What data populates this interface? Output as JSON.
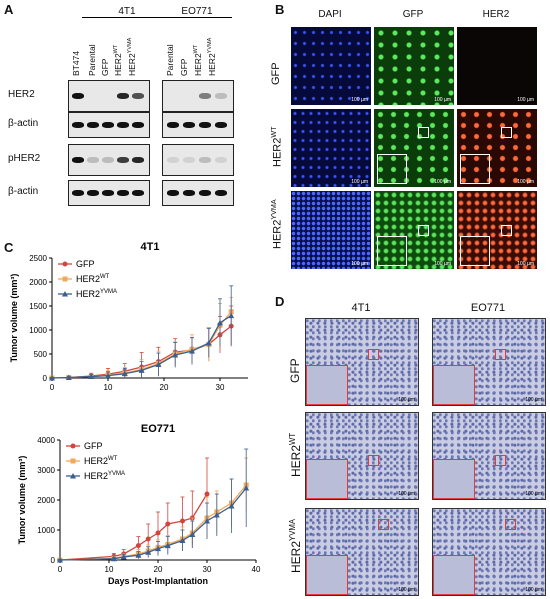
{
  "panel_a": {
    "label": "A",
    "groups": [
      "4T1",
      "EO771"
    ],
    "lanes_4t1": [
      "BT474",
      "Parental",
      "GFP",
      "HER2WT",
      "HER2YVMA"
    ],
    "lanes_eo771": [
      "Parental",
      "GFP",
      "HER2WT",
      "HER2YVMA"
    ],
    "rows": [
      "HER2",
      "β-actin",
      "pHER2",
      "β-actin"
    ]
  },
  "panel_b": {
    "label": "B",
    "columns": [
      "DAPI",
      "GFP",
      "HER2"
    ],
    "rows": [
      "GFP",
      "HER2WT",
      "HER2YVMA"
    ],
    "scale": "100 µm"
  },
  "panel_c": {
    "label": "C"
  },
  "panel_d": {
    "label": "D",
    "columns": [
      "4T1",
      "EO771"
    ],
    "rows": [
      "GFP",
      "HER2WT",
      "HER2YVMA"
    ],
    "scale": "100 µm"
  },
  "chart_data": [
    {
      "type": "line",
      "title": "4T1",
      "xlabel": "Days Post-Implantation",
      "ylabel": "Tumor volume (mm³)",
      "xlim": [
        0,
        35
      ],
      "ylim": [
        0,
        2500
      ],
      "xticks": [
        0,
        10,
        20,
        30
      ],
      "yticks": [
        0,
        500,
        1000,
        1500,
        2000,
        2500
      ],
      "legend": "top-left",
      "series": [
        {
          "name": "GFP",
          "color": "#d2453f",
          "marker": "circle",
          "x": [
            0,
            3,
            7,
            10,
            13,
            16,
            19,
            22,
            25,
            28,
            30,
            32
          ],
          "y": [
            0,
            10,
            40,
            80,
            140,
            230,
            340,
            540,
            580,
            700,
            900,
            1080
          ],
          "err": [
            10,
            20,
            60,
            120,
            160,
            300,
            300,
            280,
            260,
            350,
            380,
            420
          ]
        },
        {
          "name": "HER2WT",
          "color": "#f0a95a",
          "marker": "square",
          "x": [
            0,
            3,
            7,
            10,
            13,
            16,
            19,
            22,
            25,
            28,
            30,
            32
          ],
          "y": [
            0,
            10,
            30,
            60,
            100,
            180,
            300,
            500,
            600,
            700,
            1100,
            1380
          ],
          "err": [
            10,
            20,
            40,
            90,
            120,
            200,
            260,
            250,
            300,
            350,
            450,
            300
          ]
        },
        {
          "name": "HER2YVMA",
          "color": "#3b5f91",
          "marker": "triangle",
          "x": [
            0,
            3,
            7,
            10,
            13,
            16,
            19,
            22,
            25,
            28,
            30,
            32
          ],
          "y": [
            0,
            10,
            30,
            50,
            90,
            160,
            280,
            480,
            560,
            730,
            1150,
            1300
          ],
          "err": [
            10,
            20,
            40,
            80,
            110,
            180,
            240,
            260,
            280,
            300,
            500,
            620
          ]
        }
      ]
    },
    {
      "type": "line",
      "title": "EO771",
      "xlabel": "Days Post-Implantation",
      "ylabel": "Tumor volume (mm³)",
      "xlim": [
        0,
        40
      ],
      "ylim": [
        0,
        4000
      ],
      "xticks": [
        0,
        10,
        20,
        30,
        40
      ],
      "yticks": [
        0,
        1000,
        2000,
        3000,
        4000
      ],
      "legend": "top-left",
      "series": [
        {
          "name": "GFP",
          "color": "#d2453f",
          "marker": "circle",
          "x": [
            0,
            11,
            13,
            16,
            18,
            20,
            22,
            25,
            27,
            30
          ],
          "y": [
            0,
            120,
            200,
            480,
            700,
            900,
            1200,
            1300,
            1400,
            2200
          ],
          "err": [
            20,
            100,
            150,
            300,
            500,
            700,
            700,
            800,
            900,
            1200
          ]
        },
        {
          "name": "HER2WT",
          "color": "#f0a95a",
          "marker": "square",
          "x": [
            0,
            11,
            13,
            16,
            18,
            20,
            22,
            25,
            27,
            30,
            32,
            35,
            38
          ],
          "y": [
            0,
            50,
            120,
            200,
            300,
            420,
            520,
            700,
            900,
            1400,
            1600,
            1900,
            2500
          ],
          "err": [
            20,
            60,
            80,
            150,
            200,
            250,
            300,
            400,
            500,
            700,
            700,
            800,
            900
          ]
        },
        {
          "name": "HER2YVMA",
          "color": "#3b5f91",
          "marker": "triangle",
          "x": [
            0,
            11,
            13,
            16,
            18,
            20,
            22,
            25,
            27,
            30,
            32,
            35,
            38
          ],
          "y": [
            0,
            40,
            100,
            160,
            260,
            380,
            480,
            650,
            850,
            1300,
            1500,
            1800,
            2400
          ],
          "err": [
            20,
            50,
            80,
            120,
            180,
            240,
            300,
            350,
            450,
            600,
            700,
            900,
            1300
          ]
        }
      ]
    }
  ]
}
